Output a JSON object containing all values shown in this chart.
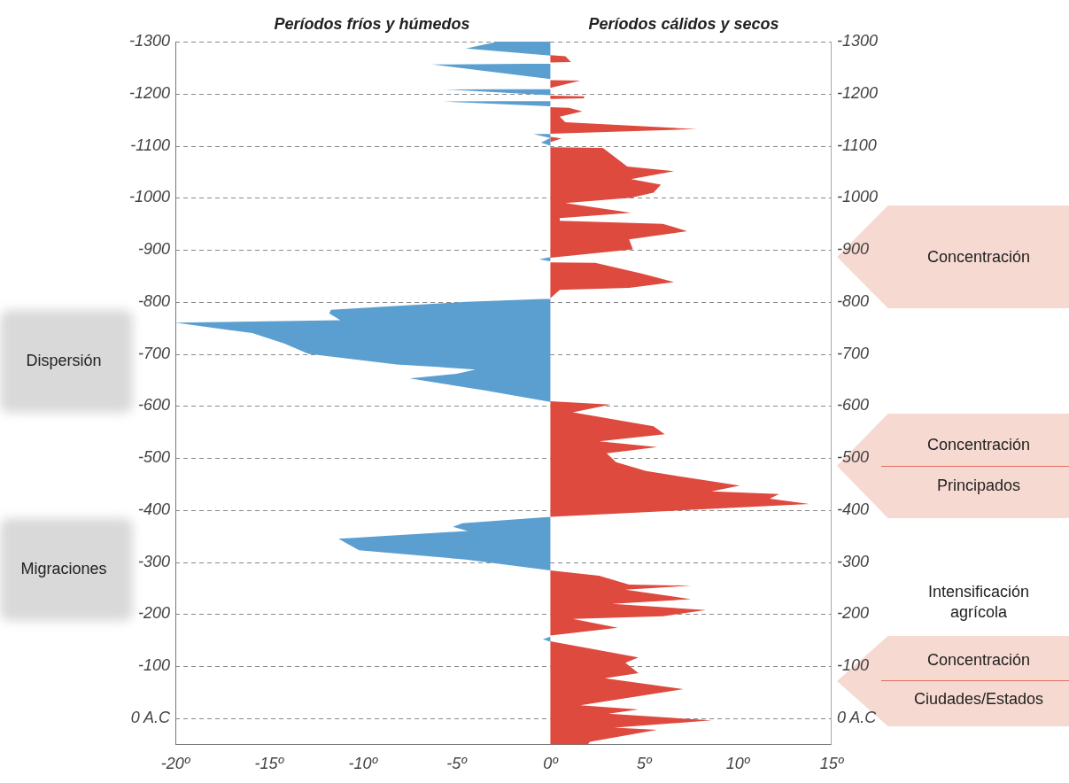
{
  "chart_data": {
    "type": "area",
    "orientation": "horizontal",
    "annotations": [
      "Períodos fríos y húmedos",
      "Períodos cálidos y secos",
      "Dispersión",
      "Migraciones",
      "Concentración",
      "Concentración",
      "Principados",
      "Intensificación agrícola",
      "Concentración",
      "Ciudades/Estados"
    ],
    "series": [
      {
        "color": "#5b9fd0",
        "x": [
          -1300,
          -1287,
          -1273,
          -1258,
          -1256,
          -1228,
          -1209,
          -1208,
          -1197,
          -1186,
          -1185,
          -1176,
          -1123,
          -1122,
          -1115,
          -1106,
          -1100,
          -886,
          -882,
          -878,
          -806,
          -800,
          -785,
          -778,
          -765,
          -760,
          -740,
          -720,
          -700,
          -680,
          -675,
          -670,
          -662,
          -653,
          -630,
          -608,
          -387,
          -375,
          -368,
          -360,
          -345,
          -335,
          -323,
          -305,
          -284,
          -157,
          -152,
          -147,
          50
        ],
        "values": [
          -2.8,
          -4.5,
          0,
          0,
          -6.3,
          0,
          0,
          -5.6,
          0,
          0,
          -5.7,
          0,
          0,
          -0.9,
          0,
          -0.5,
          0,
          0,
          -0.6,
          0,
          0,
          -4.5,
          -11.7,
          -11.8,
          -11.2,
          -20,
          -15.9,
          -14.2,
          -12.9,
          -8.2,
          -6,
          -4,
          -5,
          -7.5,
          -3.5,
          0,
          0,
          -4.7,
          -5.2,
          -4.4,
          -11.3,
          -10.8,
          -10.2,
          -4.5,
          0,
          0,
          -0.4,
          0,
          0
        ]
      },
      {
        "color": "#de4a3e",
        "x": [
          -1300,
          -1274,
          -1272,
          -1261,
          -1260,
          -1226,
          -1225,
          -1211,
          -1196,
          -1195,
          -1191,
          -1190,
          -1174,
          -1173,
          -1166,
          -1156,
          -1145,
          -1132,
          -1123,
          -1117,
          -1114,
          -1107,
          -1097,
          -1096,
          -1060,
          -1051,
          -1036,
          -1025,
          -1010,
          -1000,
          -990,
          -971,
          -961,
          -956,
          -950,
          -936,
          -920,
          -901,
          -885,
          -876,
          -875,
          -854,
          -838,
          -827,
          -823,
          -807,
          -609,
          -603,
          -588,
          -561,
          -546,
          -532,
          -521,
          -509,
          -492,
          -475,
          -447,
          -436,
          -431,
          -422,
          -412,
          -387,
          -284,
          -274,
          -257,
          -255,
          -247,
          -229,
          -220,
          -208,
          -196,
          -191,
          -174,
          -159,
          -148,
          -117,
          -107,
          -87,
          -77,
          -56,
          -25,
          -17,
          -9,
          4,
          18,
          22,
          45,
          50
        ],
        "values": [
          0,
          0,
          0.8,
          1.1,
          0,
          0,
          1.6,
          0,
          0,
          1.8,
          1.8,
          0,
          0,
          1.0,
          1.7,
          0.5,
          0.8,
          7.8,
          0,
          0,
          0.6,
          0,
          0,
          2.8,
          4.1,
          6.6,
          4.3,
          5.9,
          5.5,
          4.3,
          0.8,
          4.3,
          0.5,
          0.5,
          6.0,
          7.3,
          4.2,
          4.4,
          0,
          0,
          2.4,
          4.9,
          6.6,
          4.2,
          0.5,
          0,
          0,
          3.2,
          1.2,
          5.5,
          6.1,
          2.6,
          5.7,
          3.0,
          3.5,
          5.1,
          10.1,
          8.6,
          12.2,
          11.7,
          13.8,
          0,
          0,
          2.6,
          4.2,
          7.5,
          4.0,
          7.5,
          3.3,
          8.3,
          6.0,
          1.2,
          3.6,
          0,
          0,
          4.7,
          4.0,
          4.7,
          2.9,
          7.1,
          1.6,
          4.7,
          3.1,
          8.6,
          3.4,
          5.7,
          2.1,
          2.0
        ]
      }
    ],
    "xlim": [
      -20,
      15
    ],
    "xticks": [
      {
        "value": -20,
        "label": "-20º"
      },
      {
        "value": -15,
        "label": "-15º"
      },
      {
        "value": -10,
        "label": "-10º"
      },
      {
        "value": -5,
        "label": "-5º"
      },
      {
        "value": 0,
        "label": "0º"
      },
      {
        "value": 5,
        "label": "5º"
      },
      {
        "value": 10,
        "label": "10º"
      },
      {
        "value": 15,
        "label": "15º"
      }
    ],
    "ylim": [
      50,
      -1300
    ],
    "yticks": [
      -1300,
      -1200,
      -1100,
      -1000,
      -900,
      -800,
      -700,
      -600,
      -500,
      -400,
      -300,
      -200,
      -100,
      {
        "value": 0,
        "label": "0 A.C"
      }
    ],
    "y2lim": [
      50,
      -1300
    ],
    "y2ticks": [
      -1300,
      -1200,
      -1100,
      -1000,
      -900,
      -800,
      -700,
      -600,
      -500,
      -400,
      -300,
      -200,
      -100,
      {
        "value": 0,
        "label": "0 A.C"
      }
    ],
    "grid": "y",
    "line_style": "dashed",
    "legend": false
  }
}
